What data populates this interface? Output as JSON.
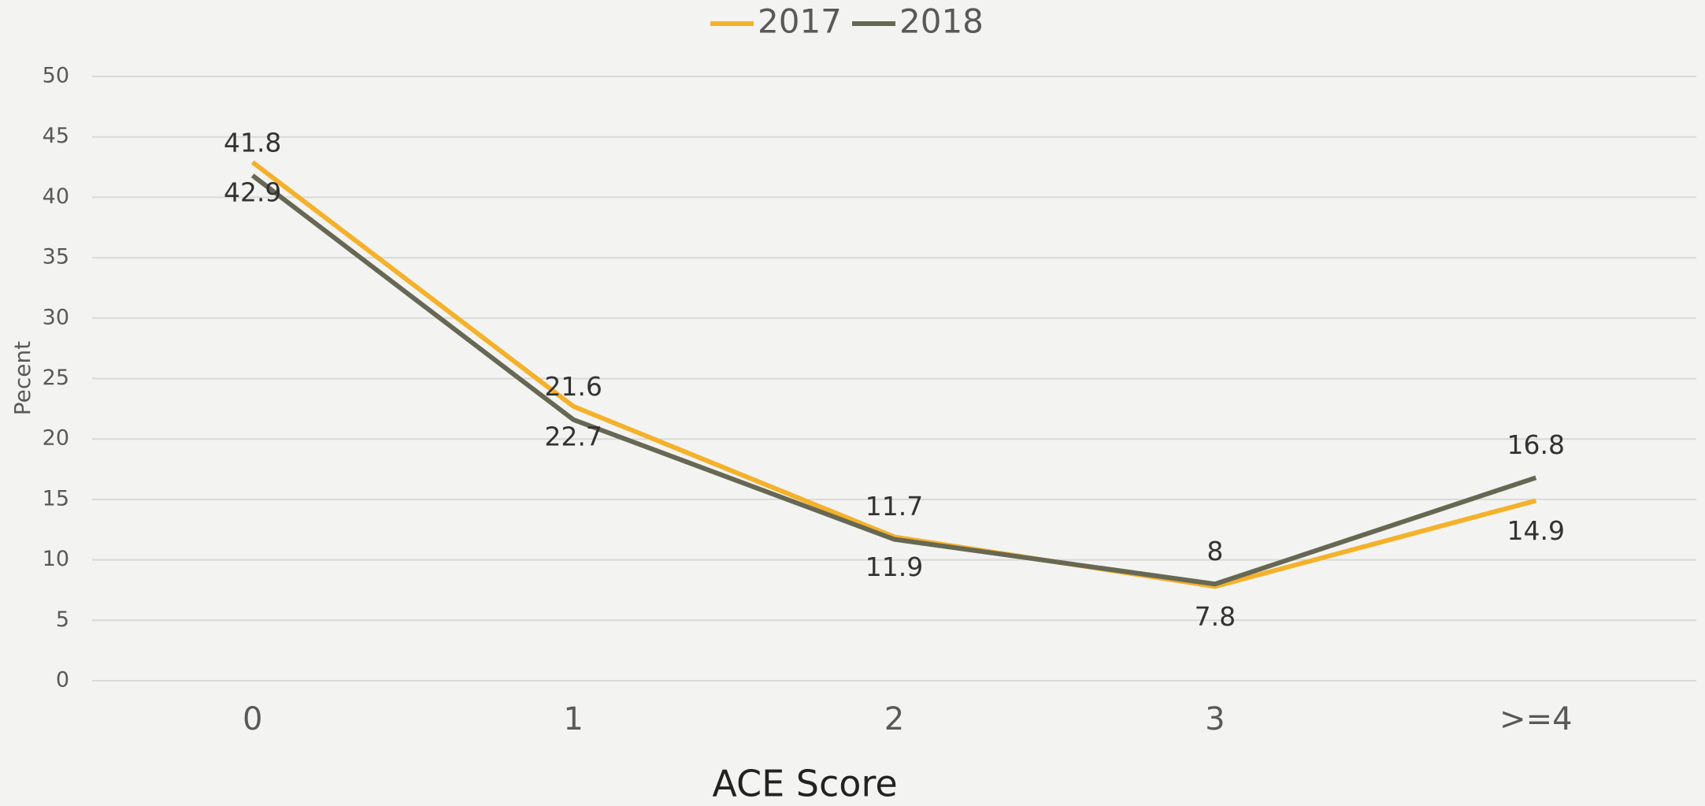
{
  "chart_data": {
    "type": "line",
    "x_label": "ACE Score",
    "y_label": "Pecent",
    "categories": [
      "0",
      "1",
      "2",
      "3",
      ">=4"
    ],
    "series": [
      {
        "name": "2017",
        "color": "#f4b12a",
        "values": [
          42.9,
          22.7,
          11.9,
          7.8,
          14.9
        ]
      },
      {
        "name": "2018",
        "color": "#676854",
        "values": [
          41.8,
          21.6,
          11.7,
          8,
          16.8
        ]
      }
    ],
    "ylim": [
      0,
      50
    ],
    "yticks": [
      0,
      5,
      10,
      15,
      20,
      25,
      30,
      35,
      40,
      45,
      50
    ],
    "grid": true,
    "legend": "top"
  }
}
